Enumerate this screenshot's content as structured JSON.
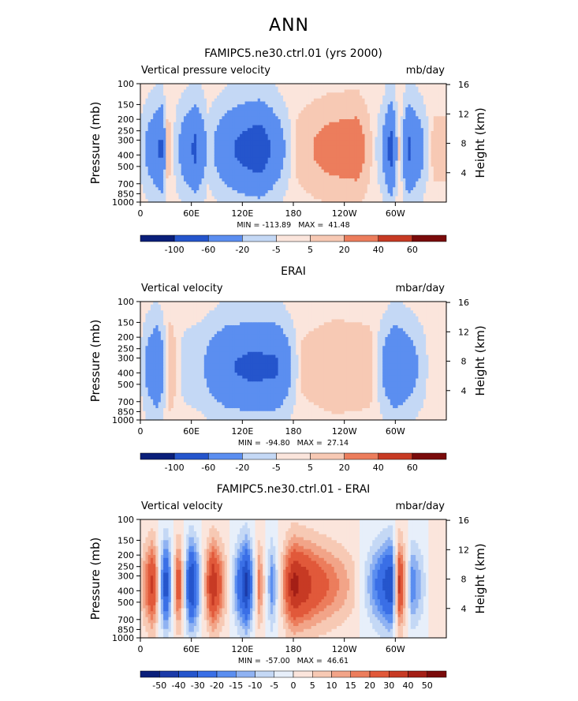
{
  "suptitle": "ANN",
  "colors": {
    "scale": [
      "#0a1f7a",
      "#1b3aa8",
      "#2555cc",
      "#3a6fe6",
      "#5b8ef0",
      "#8fb2f2",
      "#c4d8f5",
      "#e7effa",
      "#fbe5dc",
      "#f7c9b4",
      "#f2a488",
      "#ec7d5c",
      "#e1593a",
      "#c73a24",
      "#a41f16",
      "#7a0b0b"
    ]
  },
  "panels": [
    {
      "title": "FAMIPC5.ne30.ctrl.01 (yrs 2000)",
      "left_string": "Vertical pressure velocity",
      "right_string": "mb/day",
      "stats": "MIN = -113.89   MAX =  41.48",
      "colorbar_labels": [
        "-100",
        "-60",
        "-20",
        "-5",
        "5",
        "20",
        "40",
        "60"
      ]
    },
    {
      "title": "ERAI",
      "left_string": "Vertical velocity",
      "right_string": "mbar/day",
      "stats": "MIN =  -94.80   MAX =  27.14",
      "colorbar_labels": [
        "-100",
        "-60",
        "-20",
        "-5",
        "5",
        "20",
        "40",
        "60"
      ]
    },
    {
      "title": "FAMIPC5.ne30.ctrl.01 - ERAI",
      "left_string": "Vertical velocity",
      "right_string": "mbar/day",
      "stats": "MIN =  -57.00   MAX =  46.61",
      "colorbar_labels": [
        "-50",
        "-40",
        "-30",
        "-20",
        "-15",
        "-10",
        "-5",
        "0",
        "5",
        "10",
        "15",
        "20",
        "30",
        "40",
        "50"
      ]
    }
  ],
  "chart_data": [
    {
      "type": "heatmap",
      "title": "FAMIPC5.ne30.ctrl.01 (yrs 2000)",
      "xlabel": "",
      "ylabel": "Pressure (mb)",
      "y2label": "Height (km)",
      "x_ticks": [
        "0",
        "60E",
        "120E",
        "180",
        "120W",
        "60W"
      ],
      "y_ticks": [
        "100",
        "150",
        "200",
        "250",
        "300",
        "400",
        "500",
        "700",
        "850",
        "1000"
      ],
      "y2_ticks": [
        "16",
        "12",
        "8",
        "4"
      ],
      "ylim": [
        1000,
        100
      ],
      "levels": [
        -100,
        -60,
        -20,
        -5,
        5,
        20,
        40,
        60
      ],
      "min": -113.89,
      "max": 41.48,
      "longitude_profile": [
        {
          "lon": 0,
          "value": -8
        },
        {
          "lon": 15,
          "value": -40
        },
        {
          "lon": 25,
          "value": -70
        },
        {
          "lon": 32,
          "value": 15
        },
        {
          "lon": 45,
          "value": -20
        },
        {
          "lon": 65,
          "value": -70
        },
        {
          "lon": 80,
          "value": -10
        },
        {
          "lon": 110,
          "value": -60
        },
        {
          "lon": 140,
          "value": -90
        },
        {
          "lon": 165,
          "value": -30
        },
        {
          "lon": 185,
          "value": 10
        },
        {
          "lon": 220,
          "value": 30
        },
        {
          "lon": 255,
          "value": 38
        },
        {
          "lon": 285,
          "value": -20
        },
        {
          "lon": 295,
          "value": -80
        },
        {
          "lon": 305,
          "value": 10
        },
        {
          "lon": 315,
          "value": -70
        },
        {
          "lon": 345,
          "value": 10
        }
      ]
    },
    {
      "type": "heatmap",
      "title": "ERAI",
      "xlabel": "",
      "ylabel": "Pressure (mb)",
      "y2label": "Height (km)",
      "x_ticks": [
        "0",
        "60E",
        "120E",
        "180",
        "120W",
        "60W"
      ],
      "y_ticks": [
        "100",
        "150",
        "200",
        "250",
        "300",
        "400",
        "500",
        "700",
        "850",
        "1000"
      ],
      "y2_ticks": [
        "16",
        "12",
        "8",
        "4"
      ],
      "ylim": [
        1000,
        100
      ],
      "levels": [
        -100,
        -60,
        -20,
        -5,
        5,
        20,
        40,
        60
      ],
      "min": -94.8,
      "max": 27.14,
      "longitude_profile": [
        {
          "lon": 0,
          "value": -5
        },
        {
          "lon": 20,
          "value": -60
        },
        {
          "lon": 35,
          "value": 20
        },
        {
          "lon": 50,
          "value": -10
        },
        {
          "lon": 75,
          "value": -20
        },
        {
          "lon": 100,
          "value": -55
        },
        {
          "lon": 130,
          "value": -70
        },
        {
          "lon": 160,
          "value": -65
        },
        {
          "lon": 190,
          "value": 8
        },
        {
          "lon": 230,
          "value": 20
        },
        {
          "lon": 270,
          "value": 15
        },
        {
          "lon": 300,
          "value": -60
        },
        {
          "lon": 320,
          "value": -30
        },
        {
          "lon": 345,
          "value": 5
        }
      ]
    },
    {
      "type": "heatmap",
      "title": "FAMIPC5.ne30.ctrl.01 - ERAI",
      "xlabel": "",
      "ylabel": "Pressure (mb)",
      "y2label": "Height (km)",
      "x_ticks": [
        "0",
        "60E",
        "120E",
        "180",
        "120W",
        "60W"
      ],
      "y_ticks": [
        "100",
        "150",
        "200",
        "250",
        "300",
        "400",
        "500",
        "700",
        "850",
        "1000"
      ],
      "y2_ticks": [
        "16",
        "12",
        "8",
        "4"
      ],
      "ylim": [
        1000,
        100
      ],
      "levels": [
        -50,
        -40,
        -30,
        -20,
        -15,
        -10,
        -5,
        0,
        5,
        10,
        15,
        20,
        30,
        40,
        50
      ],
      "min": -57.0,
      "max": 46.61,
      "longitude_profile": [
        {
          "lon": 0,
          "value": 5
        },
        {
          "lon": 15,
          "value": 35
        },
        {
          "lon": 30,
          "value": -40
        },
        {
          "lon": 45,
          "value": 30
        },
        {
          "lon": 60,
          "value": -45
        },
        {
          "lon": 85,
          "value": 40
        },
        {
          "lon": 110,
          "value": -10
        },
        {
          "lon": 125,
          "value": -45
        },
        {
          "lon": 140,
          "value": 20
        },
        {
          "lon": 155,
          "value": -20
        },
        {
          "lon": 180,
          "value": 45
        },
        {
          "lon": 210,
          "value": 25
        },
        {
          "lon": 250,
          "value": 8
        },
        {
          "lon": 270,
          "value": -12
        },
        {
          "lon": 295,
          "value": -40
        },
        {
          "lon": 305,
          "value": 35
        },
        {
          "lon": 320,
          "value": -20
        },
        {
          "lon": 345,
          "value": 5
        }
      ]
    }
  ]
}
